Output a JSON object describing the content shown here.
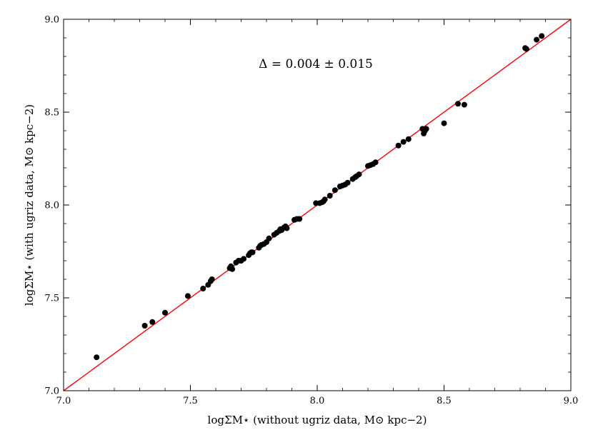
{
  "chart_data": {
    "type": "scatter",
    "title": "",
    "xlabel": "logΣM⋆ (without ugriz data, M⊙ kpc−2)",
    "ylabel": "logΣM⋆ (with ugriz data, M⊙ kpc−2)",
    "annotation": "Δ = 0.004 ± 0.015",
    "xlim": [
      7.0,
      9.0
    ],
    "ylim": [
      7.0,
      9.0
    ],
    "xticks": [
      "7.0",
      "7.5",
      "8.0",
      "8.5",
      "9.0"
    ],
    "yticks": [
      "7.0",
      "7.5",
      "8.0",
      "8.5",
      "9.0"
    ],
    "grid": false,
    "colors": {
      "points": "#000000",
      "reference_line": "#ff0000"
    },
    "reference_line": {
      "from": [
        7.0,
        7.0
      ],
      "to": [
        9.0,
        9.0
      ]
    },
    "points": [
      {
        "x": 7.13,
        "y": 7.18
      },
      {
        "x": 7.32,
        "y": 7.35
      },
      {
        "x": 7.35,
        "y": 7.37
      },
      {
        "x": 7.4,
        "y": 7.42
      },
      {
        "x": 7.49,
        "y": 7.51
      },
      {
        "x": 7.55,
        "y": 7.55
      },
      {
        "x": 7.57,
        "y": 7.57
      },
      {
        "x": 7.58,
        "y": 7.59
      },
      {
        "x": 7.585,
        "y": 7.6
      },
      {
        "x": 7.655,
        "y": 7.66
      },
      {
        "x": 7.66,
        "y": 7.67
      },
      {
        "x": 7.665,
        "y": 7.655
      },
      {
        "x": 7.68,
        "y": 7.69
      },
      {
        "x": 7.69,
        "y": 7.7
      },
      {
        "x": 7.7,
        "y": 7.7
      },
      {
        "x": 7.71,
        "y": 7.71
      },
      {
        "x": 7.73,
        "y": 7.73
      },
      {
        "x": 7.735,
        "y": 7.74
      },
      {
        "x": 7.74,
        "y": 7.745
      },
      {
        "x": 7.745,
        "y": 7.745
      },
      {
        "x": 7.77,
        "y": 7.77
      },
      {
        "x": 7.775,
        "y": 7.78
      },
      {
        "x": 7.78,
        "y": 7.785
      },
      {
        "x": 7.79,
        "y": 7.79
      },
      {
        "x": 7.8,
        "y": 7.8
      },
      {
        "x": 7.81,
        "y": 7.82
      },
      {
        "x": 7.83,
        "y": 7.84
      },
      {
        "x": 7.84,
        "y": 7.85
      },
      {
        "x": 7.85,
        "y": 7.86
      },
      {
        "x": 7.855,
        "y": 7.87
      },
      {
        "x": 7.86,
        "y": 7.865
      },
      {
        "x": 7.87,
        "y": 7.88
      },
      {
        "x": 7.875,
        "y": 7.885
      },
      {
        "x": 7.88,
        "y": 7.875
      },
      {
        "x": 7.91,
        "y": 7.92
      },
      {
        "x": 7.92,
        "y": 7.925
      },
      {
        "x": 7.93,
        "y": 7.925
      },
      {
        "x": 7.995,
        "y": 8.01
      },
      {
        "x": 8.01,
        "y": 8.01
      },
      {
        "x": 8.02,
        "y": 8.015
      },
      {
        "x": 8.025,
        "y": 8.02
      },
      {
        "x": 8.03,
        "y": 8.03
      },
      {
        "x": 8.05,
        "y": 8.05
      },
      {
        "x": 8.07,
        "y": 8.08
      },
      {
        "x": 8.09,
        "y": 8.1
      },
      {
        "x": 8.1,
        "y": 8.105
      },
      {
        "x": 8.11,
        "y": 8.11
      },
      {
        "x": 8.12,
        "y": 8.12
      },
      {
        "x": 8.14,
        "y": 8.14
      },
      {
        "x": 8.15,
        "y": 8.15
      },
      {
        "x": 8.155,
        "y": 8.155
      },
      {
        "x": 8.165,
        "y": 8.165
      },
      {
        "x": 8.2,
        "y": 8.21
      },
      {
        "x": 8.21,
        "y": 8.215
      },
      {
        "x": 8.22,
        "y": 8.22
      },
      {
        "x": 8.23,
        "y": 8.23
      },
      {
        "x": 8.32,
        "y": 8.32
      },
      {
        "x": 8.34,
        "y": 8.34
      },
      {
        "x": 8.36,
        "y": 8.355
      },
      {
        "x": 8.415,
        "y": 8.41
      },
      {
        "x": 8.42,
        "y": 8.385
      },
      {
        "x": 8.425,
        "y": 8.4
      },
      {
        "x": 8.43,
        "y": 8.41
      },
      {
        "x": 8.5,
        "y": 8.44
      },
      {
        "x": 8.555,
        "y": 8.545
      },
      {
        "x": 8.58,
        "y": 8.54
      },
      {
        "x": 8.82,
        "y": 8.845
      },
      {
        "x": 8.825,
        "y": 8.84
      },
      {
        "x": 8.865,
        "y": 8.89
      },
      {
        "x": 8.885,
        "y": 8.91
      }
    ]
  }
}
